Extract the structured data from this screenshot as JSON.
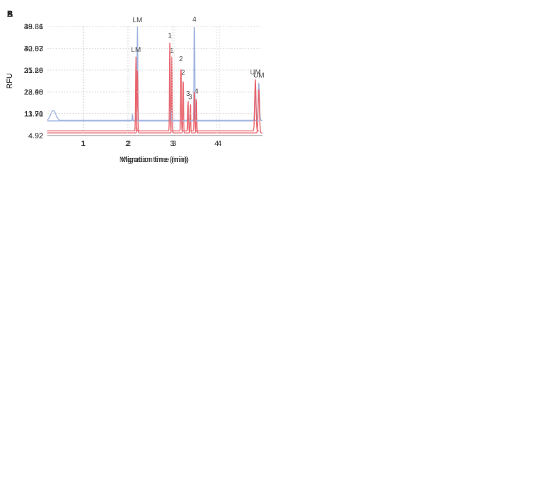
{
  "chart_data": [
    {
      "type": "line",
      "panel_label": "A",
      "xlabel": "Migration time (min)",
      "ylabel": "RFU",
      "xlim": [
        0.2,
        4.95
      ],
      "ylim": [
        4.92,
        48.81
      ],
      "xticks": [
        "1",
        "2",
        "3",
        "4"
      ],
      "yticks": [
        "48.81",
        "40.03",
        "31.26",
        "22.48",
        "13.70",
        "4.92"
      ],
      "grid": true,
      "series": [
        {
          "color": "#9fb3e0",
          "baseline": 11.0,
          "peaks": [
            {
              "x": 0.33,
              "y": 15.0,
              "w": 0.08
            },
            {
              "x": 2.19,
              "y": 48.8,
              "w": 0.012
            },
            {
              "x": 4.87,
              "y": 26.0,
              "w": 0.02
            }
          ]
        },
        {
          "color": "#e8636b",
          "baseline": 6.0,
          "peaks": [
            {
              "x": 2.19,
              "y": 31.0,
              "w": 0.012
            },
            {
              "x": 2.95,
              "y": 36.5,
              "w": 0.01
            },
            {
              "x": 3.2,
              "y": 27.5,
              "w": 0.01
            },
            {
              "x": 3.36,
              "y": 17.5,
              "w": 0.01
            },
            {
              "x": 3.49,
              "y": 20.0,
              "w": 0.01
            },
            {
              "x": 4.87,
              "y": 23.5,
              "w": 0.02
            }
          ]
        }
      ],
      "annotations": [
        {
          "text": "LM",
          "x": 2.19,
          "y": 50.5
        },
        {
          "text": "1",
          "x": 2.95,
          "y": 38.2
        },
        {
          "text": "2",
          "x": 3.2,
          "y": 29.4
        },
        {
          "text": "3",
          "x": 3.36,
          "y": 19.6
        },
        {
          "text": "4",
          "x": 3.49,
          "y": 21.9
        },
        {
          "text": "UM",
          "x": 4.87,
          "y": 28.2
        }
      ]
    },
    {
      "type": "line",
      "panel_label": "B",
      "xlabel": "Migration time (min)",
      "ylabel": "RFU",
      "xlim": [
        0.2,
        4.95
      ],
      "ylim": [
        4.92,
        39.86
      ],
      "xticks": [
        "1",
        "2",
        "3",
        "4"
      ],
      "yticks": [
        "39.86",
        "32.87",
        "25.89",
        "18.90",
        "11.91",
        "4.92"
      ],
      "grid": true,
      "series": [
        {
          "color": "#9fb3e0",
          "baseline": 9.6,
          "peaks": [
            {
              "x": 2.11,
              "y": 11.8,
              "w": 0.01
            },
            {
              "x": 2.97,
              "y": 14.0,
              "w": 0.01
            },
            {
              "x": 3.36,
              "y": 15.0,
              "w": 0.01
            },
            {
              "x": 3.5,
              "y": 39.9,
              "w": 0.012
            },
            {
              "x": 4.87,
              "y": 18.0,
              "w": 0.02
            }
          ]
        },
        {
          "color": "#e8636b",
          "baseline": 6.4,
          "peaks": [
            {
              "x": 2.19,
              "y": 30.0,
              "w": 0.012
            },
            {
              "x": 2.95,
              "y": 34.5,
              "w": 0.01
            },
            {
              "x": 3.2,
              "y": 27.0,
              "w": 0.01
            },
            {
              "x": 3.36,
              "y": 16.0,
              "w": 0.01
            },
            {
              "x": 3.5,
              "y": 19.0,
              "w": 0.01
            },
            {
              "x": 4.87,
              "y": 22.8,
              "w": 0.02
            }
          ]
        }
      ],
      "annotations": [
        {
          "text": "LM",
          "x": 2.19,
          "y": 31.6
        },
        {
          "text": "1",
          "x": 2.95,
          "y": 36.2
        },
        {
          "text": "2",
          "x": 3.2,
          "y": 28.7
        },
        {
          "text": "3",
          "x": 3.36,
          "y": 17.6
        },
        {
          "text": "4",
          "x": 3.5,
          "y": 41.4
        },
        {
          "text": "UM",
          "x": 4.87,
          "y": 24.5
        }
      ]
    }
  ]
}
